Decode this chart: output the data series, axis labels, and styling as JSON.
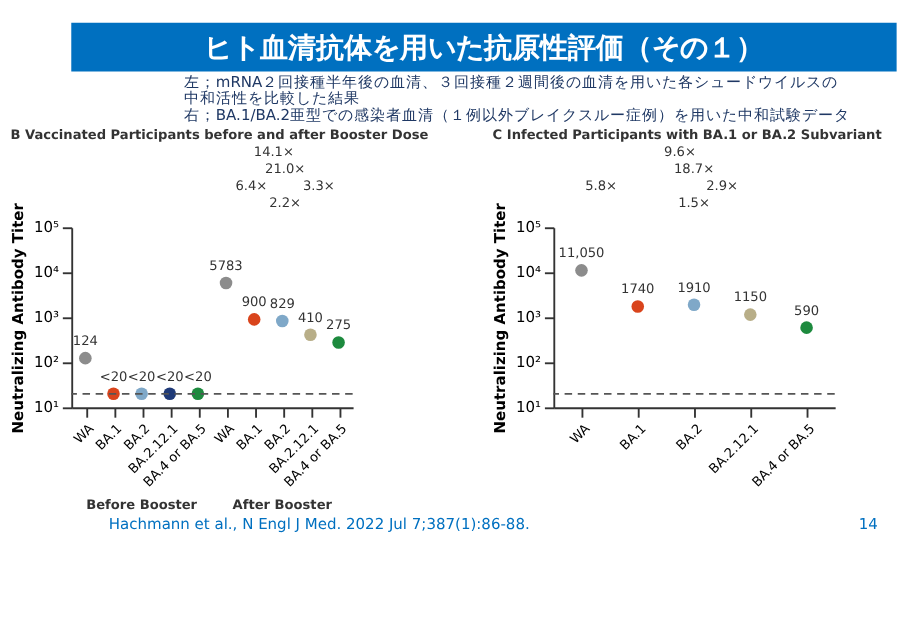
{
  "chart_data": [
    {
      "type": "other",
      "title": "ヒト血清抗体を用いた抗原性評価（その１）",
      "annotations": [
        "左；mRNA２回接種半年後の血清、３回接種２週間後の血清を用いた各シュードウイルスの",
        "　　中和活性を比較した結果",
        "右；BA.1/BA.2亜型での感染者血清（１例以外ブレイクスルー症例）を用いた中和試験データ",
        "Hachmann et al., N Engl J Med. 2022 Jul 7;387(1):86-88.",
        "14"
      ]
    },
    {
      "type": "scatter",
      "title": "B  Vaccinated Participants before and after Booster Dose",
      "ylabel": "Neutralizing Antibody Titer",
      "categories": [
        "WA",
        "BA.1",
        "BA.2",
        "BA.2.12.1",
        "BA.4 or BA.5",
        "WA",
        "BA.1",
        "BA.2",
        "BA.2.12.1",
        "BA.4 or BA.5"
      ],
      "values": [
        124,
        20,
        20,
        20,
        20,
        5783,
        900,
        829,
        410,
        275
      ],
      "value_labels": [
        "124",
        "<20",
        "<20",
        "<20",
        "<20",
        "5783",
        "900",
        "829",
        "410",
        "275"
      ],
      "colors": [
        "#8c8c8c",
        "#d9441c",
        "#7fa8c8",
        "#1f3a78",
        "#1d8a3e",
        "#8c8c8c",
        "#d9441c",
        "#7fa8c8",
        "#b8ae88",
        "#1d8a3e"
      ],
      "log": true,
      "ylim": [
        10,
        100000
      ],
      "yticks": [
        {
          "value": 10,
          "label": "10¹"
        },
        {
          "value": 100,
          "label": "10²"
        },
        {
          "value": 1000,
          "label": "10³"
        },
        {
          "value": 10000,
          "label": "10⁴"
        },
        {
          "value": 100000,
          "label": "10⁵"
        }
      ],
      "ref_lines": [
        {
          "axis": "y",
          "value": 20,
          "label": null,
          "line_style": "dashed",
          "color": "#555555"
        }
      ],
      "annotations": [
        "14.1×",
        "21.0×",
        "6.4×",
        "3.3×",
        "2.2×",
        "Before Booster",
        "After Booster"
      ],
      "marker": "circle",
      "grid": false,
      "legend": false
    },
    {
      "type": "scatter",
      "title": "C  Infected Participants with BA.1 or BA.2 Subvariant",
      "ylabel": "Neutralizing Antibody Titer",
      "categories": [
        "WA",
        "BA.1",
        "BA.2",
        "BA.2.12.1",
        "BA.4 or BA.5"
      ],
      "values": [
        11050,
        1740,
        1910,
        1150,
        590
      ],
      "value_labels": [
        "11,050",
        "1740",
        "1910",
        "1150",
        "590"
      ],
      "colors": [
        "#8c8c8c",
        "#d9441c",
        "#7fa8c8",
        "#b8ae88",
        "#1d8a3e"
      ],
      "log": true,
      "ylim": [
        10,
        100000
      ],
      "yticks": [
        {
          "value": 10,
          "label": "10¹"
        },
        {
          "value": 100,
          "label": "10²"
        },
        {
          "value": 1000,
          "label": "10³"
        },
        {
          "value": 10000,
          "label": "10⁴"
        },
        {
          "value": 100000,
          "label": "10⁵"
        }
      ],
      "ref_lines": [
        {
          "axis": "y",
          "value": 20,
          "label": null,
          "line_style": "dashed",
          "color": "#555555"
        }
      ],
      "annotations": [
        "9.6×",
        "18.7×",
        "5.8×",
        "2.9×",
        "1.5×"
      ],
      "marker": "circle",
      "grid": false,
      "legend": false
    }
  ]
}
